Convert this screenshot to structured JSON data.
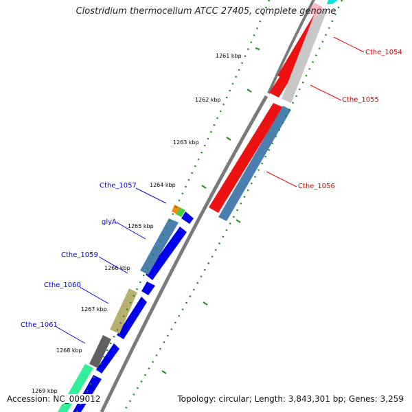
{
  "title": "Clostridium thermocellum ATCC 27405, complete genome",
  "footer": {
    "accession": "Accession: NC_009012",
    "summary": "Topology: circular; Length: 3,843,301 bp; Genes: 3,259"
  },
  "ticks": [
    "1261 kbp",
    "1262 kbp",
    "1263 kbp",
    "1264 kbp",
    "1265 kbp",
    "1266 kbp",
    "1267 kbp",
    "1268 kbp",
    "1269 kbp"
  ],
  "genes_reverse": [
    {
      "name": "Cthe_1054",
      "color": "#cc0000"
    },
    {
      "name": "Cthe_1055",
      "color": "#cc0000"
    },
    {
      "name": "Cthe_1056",
      "color": "#cc0000"
    }
  ],
  "genes_forward": [
    {
      "name": "Cthe_1057",
      "color": "#0000cc"
    },
    {
      "name": "glyA",
      "color": "#0000cc"
    },
    {
      "name": "Cthe_1059",
      "color": "#0000cc"
    },
    {
      "name": "Cthe_1060",
      "color": "#0000cc"
    },
    {
      "name": "Cthe_1061",
      "color": "#0000cc"
    }
  ],
  "colors": {
    "backbone": "#888888",
    "forward_cds": "#0000ee",
    "reverse_cds": "#ee0000",
    "tick_dots": "#228822",
    "skew_plus": "#008800"
  }
}
